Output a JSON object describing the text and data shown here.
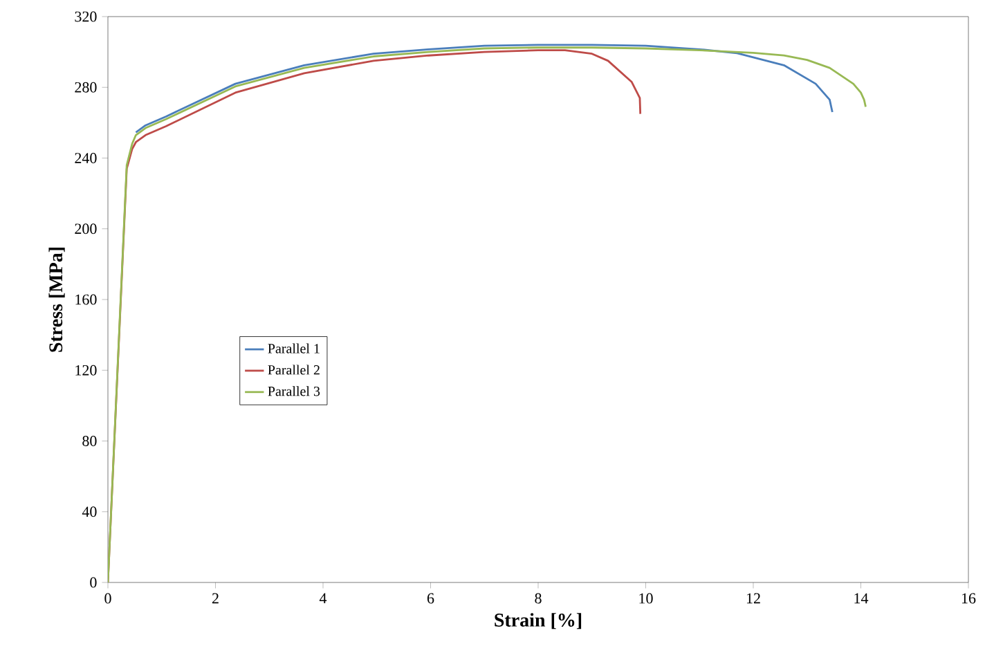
{
  "chart_data": {
    "type": "line",
    "xlabel": "Strain [%]",
    "ylabel": "Stress [MPa]",
    "xlim": [
      0,
      16
    ],
    "ylim": [
      0,
      320
    ],
    "xticks": [
      0,
      2,
      4,
      6,
      8,
      10,
      12,
      14,
      16
    ],
    "yticks": [
      0,
      40,
      80,
      120,
      160,
      200,
      240,
      280,
      320
    ],
    "grid": false,
    "legend": "left",
    "marker": "none",
    "line_style": "solid",
    "series": [
      {
        "name": "Parallel 1",
        "color": "#4a7ebb",
        "x": [
          0.52,
          0.7,
          1.08,
          2.37,
          3.65,
          4.94,
          5.96,
          7,
          8,
          9,
          10,
          11,
          11.7,
          12.57,
          13.16,
          13.42,
          13.47
        ],
        "values": [
          254.5,
          258.5,
          263.5,
          282,
          292.5,
          299,
          301.5,
          303.5,
          304,
          304,
          303.5,
          301.5,
          299.3,
          292.5,
          282,
          273,
          266
        ]
      },
      {
        "name": "Parallel 2",
        "color": "#be4b48",
        "x": [
          0,
          0.35,
          0.45,
          0.52,
          0.7,
          1.08,
          2.37,
          3.65,
          4.94,
          5.96,
          7,
          8,
          8.5,
          9,
          9.3,
          9.74,
          9.89,
          9.9
        ],
        "values": [
          0,
          234,
          245,
          249,
          253,
          258,
          277,
          288,
          295,
          298,
          300,
          301,
          301,
          299,
          295,
          283,
          274,
          265
        ]
      },
      {
        "name": "Parallel 3",
        "color": "#98b954",
        "x": [
          0,
          0.2,
          0.35,
          0.45,
          0.52,
          0.7,
          1.08,
          2.37,
          3.65,
          4.94,
          5.96,
          7,
          8,
          9,
          10,
          11,
          12,
          12.57,
          13.0,
          13.42,
          13.86,
          14.0,
          14.06,
          14.09
        ],
        "values": [
          0,
          135,
          236,
          248,
          253,
          257,
          262,
          280.5,
          291,
          297.5,
          300,
          302,
          302.5,
          302.5,
          302,
          301,
          299.5,
          298,
          295.5,
          291,
          282,
          277,
          273,
          269
        ]
      }
    ]
  }
}
